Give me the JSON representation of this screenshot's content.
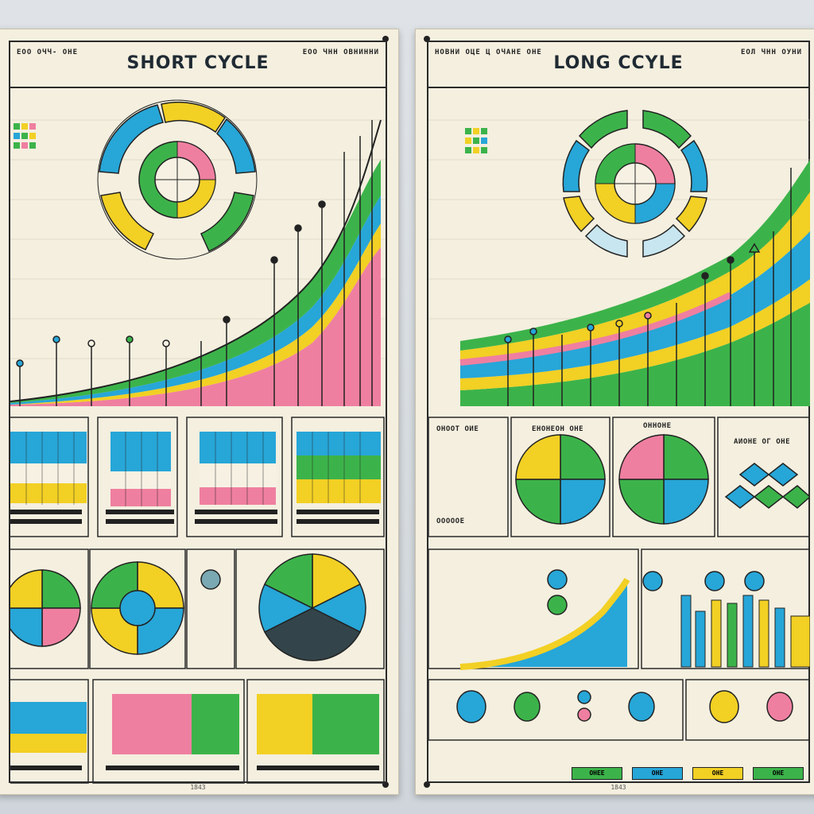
{
  "colors": {
    "green": "#3cb34a",
    "yellow": "#f2d024",
    "blue": "#27a6d8",
    "pink": "#ef7fa0",
    "paper": "#f4efdf",
    "ink": "#1f2a33"
  },
  "left_poster": {
    "title": "SHORT CYCLE",
    "header_note_left": "ЕОО ОЧЧ- ОНЕ",
    "header_note_right": "ЕОО ЧНН ОВНИННИ"
  },
  "right_poster": {
    "title": "LONG CCYLE",
    "header_note_left": "НОВНИ ОЦЕ Ц ОЧАНЕ ОНЕ",
    "header_note_right": "ЕОЛ ЧНН ОУНИ",
    "panel_labels": {
      "cycle_note": "ОНООТ ОИЕ",
      "middle_note": "АИОНЕ ОГ ОНЕ",
      "pie_title_1": "ЕНОНЕОН ОНЕ",
      "pie_title_2": "ОННОНЕ",
      "bottom_note": "ОООООЕ"
    },
    "legend_chips": [
      "ОНЕЕ",
      "ОНЕ",
      "ОНЕ",
      "ОНЕ"
    ]
  },
  "icons": [
    "ring-cycle-icon",
    "pushpin-icon",
    "marker-pin-icon",
    "diamond-grid-icon"
  ]
}
